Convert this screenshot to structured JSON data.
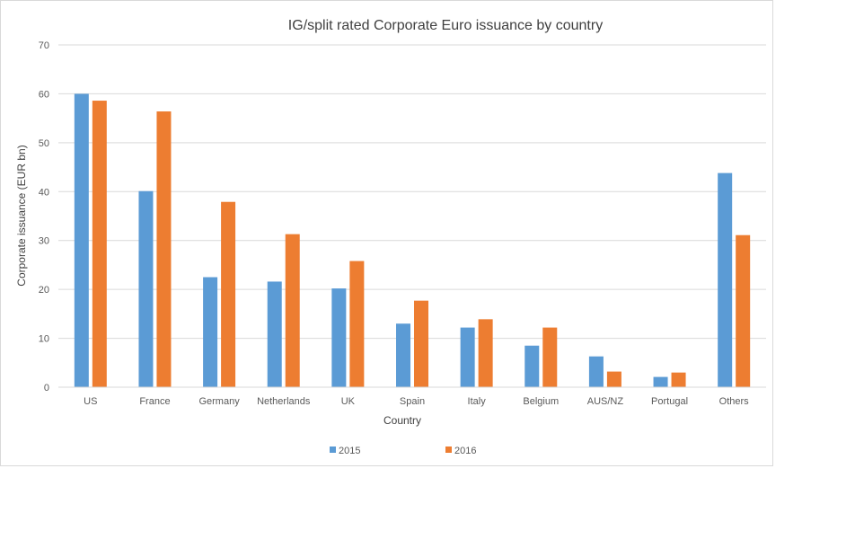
{
  "chart_data": {
    "type": "bar",
    "title": "IG/split rated Corporate Euro issuance by country",
    "xlabel": "Country",
    "ylabel": "Corporate issuance (EUR bn)",
    "ylim": [
      0,
      70
    ],
    "yticks": [
      0,
      10,
      20,
      30,
      40,
      50,
      60,
      70
    ],
    "grid": true,
    "legend_position": "bottom",
    "categories": [
      "US",
      "France",
      "Germany",
      "Netherlands",
      "UK",
      "Spain",
      "Italy",
      "Belgium",
      "AUS/NZ",
      "Portugal",
      "Others"
    ],
    "series": [
      {
        "name": "2015",
        "color": "#5b9bd5",
        "values": [
          60.0,
          40.1,
          22.5,
          21.6,
          20.2,
          13.0,
          12.2,
          8.5,
          6.3,
          2.1,
          43.8
        ]
      },
      {
        "name": "2016",
        "color": "#ed7d31",
        "values": [
          58.6,
          56.4,
          37.9,
          31.3,
          25.8,
          17.7,
          13.9,
          12.2,
          3.2,
          3.0,
          31.1
        ]
      }
    ]
  }
}
